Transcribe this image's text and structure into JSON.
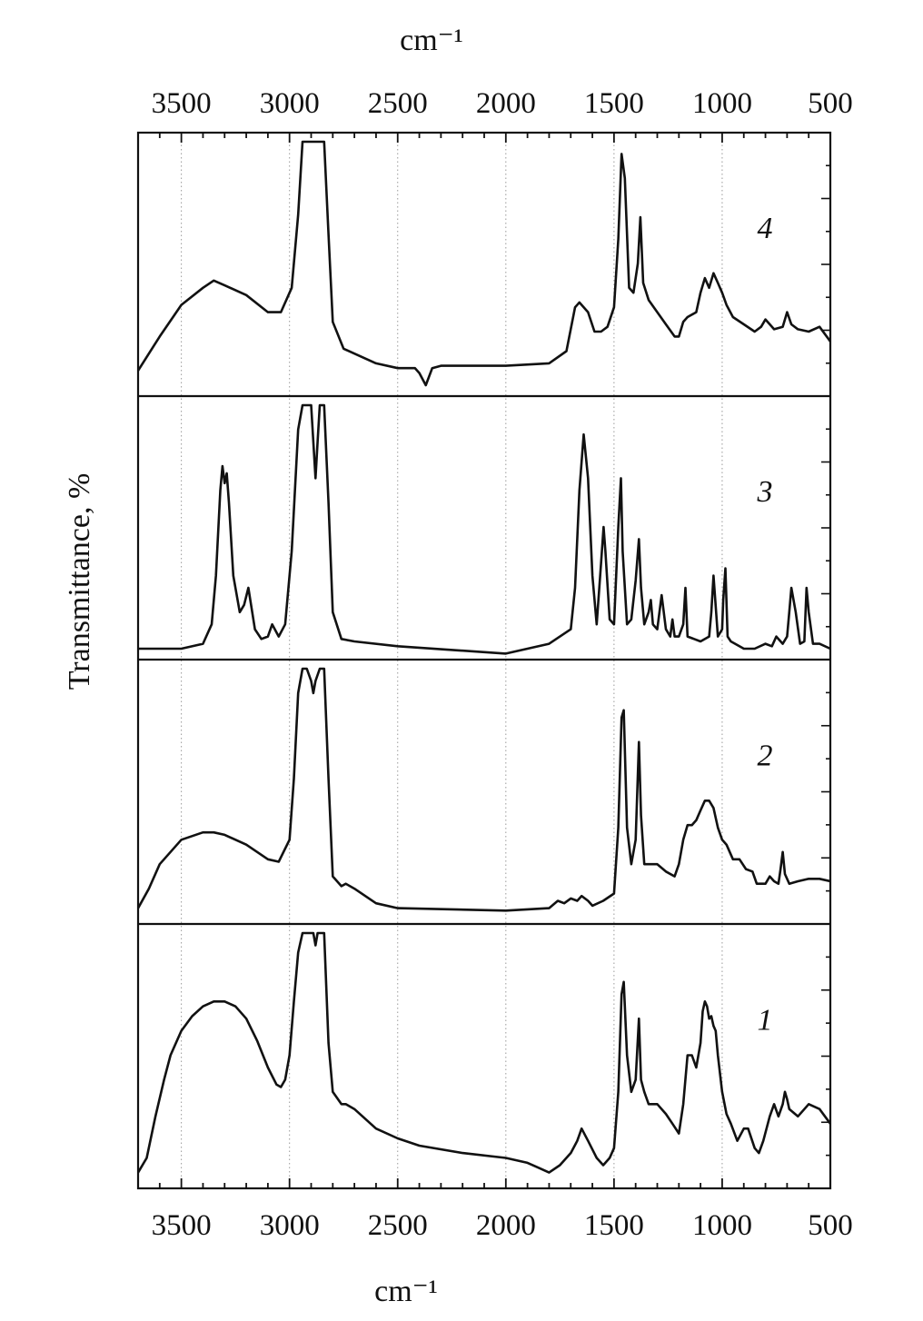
{
  "chart_data": {
    "type": "line",
    "title": "",
    "xlabel_top": "cm⁻¹",
    "xlabel_bottom": "cm⁻¹",
    "ylabel": "Transmittance, %",
    "xlim": [
      3700,
      500
    ],
    "x_reversed": true,
    "x_ticks": [
      3500,
      3000,
      2500,
      2000,
      1500,
      1000,
      500
    ],
    "x_tick_labels": [
      "3500",
      "3000",
      "2500",
      "2000",
      "1500",
      "1000",
      "500"
    ],
    "grid": "vertical dotted lines at major ticks",
    "line_color": "#111111",
    "panels": [
      {
        "name": "4",
        "ylim": [
          0,
          1
        ],
        "x": [
          3700,
          3600,
          3500,
          3400,
          3350,
          3300,
          3200,
          3100,
          3040,
          2990,
          2960,
          2940,
          2920,
          2860,
          2840,
          2820,
          2800,
          2750,
          2700,
          2600,
          2500,
          2420,
          2400,
          2370,
          2340,
          2300,
          2000,
          1800,
          1720,
          1680,
          1660,
          1620,
          1590,
          1560,
          1530,
          1500,
          1480,
          1465,
          1450,
          1430,
          1410,
          1390,
          1378,
          1365,
          1340,
          1300,
          1260,
          1220,
          1200,
          1180,
          1160,
          1120,
          1100,
          1080,
          1060,
          1040,
          1020,
          1000,
          980,
          950,
          900,
          850,
          820,
          800,
          760,
          720,
          700,
          680,
          650,
          600,
          550,
          500
        ],
        "y": [
          0.06,
          0.2,
          0.33,
          0.4,
          0.43,
          0.41,
          0.37,
          0.3,
          0.3,
          0.4,
          0.7,
          1.0,
          1.0,
          1.0,
          1.0,
          0.62,
          0.26,
          0.15,
          0.13,
          0.09,
          0.07,
          0.07,
          0.05,
          0.0,
          0.07,
          0.08,
          0.08,
          0.09,
          0.14,
          0.32,
          0.34,
          0.3,
          0.22,
          0.22,
          0.24,
          0.32,
          0.6,
          0.95,
          0.85,
          0.4,
          0.38,
          0.5,
          0.69,
          0.42,
          0.35,
          0.3,
          0.25,
          0.2,
          0.2,
          0.26,
          0.28,
          0.3,
          0.38,
          0.44,
          0.4,
          0.46,
          0.42,
          0.38,
          0.33,
          0.28,
          0.25,
          0.22,
          0.24,
          0.27,
          0.23,
          0.24,
          0.3,
          0.25,
          0.23,
          0.22,
          0.24,
          0.18
        ]
      },
      {
        "name": "3",
        "ylim": [
          0,
          1
        ],
        "x": [
          3700,
          3500,
          3400,
          3360,
          3340,
          3320,
          3310,
          3300,
          3290,
          3280,
          3260,
          3230,
          3210,
          3190,
          3160,
          3130,
          3100,
          3080,
          3050,
          3020,
          2990,
          2960,
          2940,
          2920,
          2900,
          2890,
          2880,
          2870,
          2860,
          2840,
          2820,
          2800,
          2760,
          2700,
          2500,
          2000,
          1800,
          1700,
          1680,
          1660,
          1640,
          1620,
          1600,
          1580,
          1560,
          1548,
          1540,
          1520,
          1500,
          1480,
          1468,
          1460,
          1440,
          1420,
          1400,
          1385,
          1375,
          1360,
          1340,
          1330,
          1320,
          1300,
          1290,
          1280,
          1260,
          1240,
          1230,
          1220,
          1200,
          1180,
          1170,
          1160,
          1130,
          1100,
          1060,
          1050,
          1040,
          1020,
          1000,
          995,
          985,
          975,
          960,
          940,
          900,
          850,
          800,
          770,
          750,
          720,
          700,
          690,
          680,
          660,
          640,
          620,
          610,
          600,
          580,
          550,
          500
        ],
        "y": [
          0.0,
          0.0,
          0.02,
          0.1,
          0.3,
          0.65,
          0.75,
          0.68,
          0.72,
          0.6,
          0.3,
          0.15,
          0.18,
          0.25,
          0.08,
          0.04,
          0.05,
          0.1,
          0.05,
          0.1,
          0.4,
          0.9,
          1.0,
          1.0,
          1.0,
          0.85,
          0.7,
          0.85,
          1.0,
          1.0,
          0.6,
          0.15,
          0.04,
          0.03,
          0.01,
          -0.02,
          0.02,
          0.08,
          0.25,
          0.65,
          0.88,
          0.7,
          0.3,
          0.1,
          0.35,
          0.5,
          0.4,
          0.12,
          0.1,
          0.5,
          0.7,
          0.4,
          0.1,
          0.12,
          0.28,
          0.45,
          0.25,
          0.1,
          0.15,
          0.2,
          0.1,
          0.08,
          0.15,
          0.22,
          0.08,
          0.05,
          0.12,
          0.05,
          0.05,
          0.1,
          0.25,
          0.05,
          0.04,
          0.03,
          0.05,
          0.15,
          0.3,
          0.05,
          0.08,
          0.2,
          0.33,
          0.05,
          0.03,
          0.02,
          0.0,
          0.0,
          0.02,
          0.01,
          0.05,
          0.02,
          0.05,
          0.15,
          0.25,
          0.15,
          0.02,
          0.03,
          0.25,
          0.15,
          0.02,
          0.02,
          0.0
        ]
      },
      {
        "name": "2",
        "ylim": [
          0,
          1
        ],
        "x": [
          3700,
          3650,
          3600,
          3500,
          3400,
          3350,
          3300,
          3200,
          3100,
          3050,
          3000,
          2980,
          2960,
          2940,
          2920,
          2900,
          2890,
          2880,
          2860,
          2840,
          2820,
          2800,
          2760,
          2740,
          2700,
          2600,
          2500,
          2000,
          1800,
          1760,
          1730,
          1700,
          1670,
          1650,
          1620,
          1600,
          1550,
          1500,
          1480,
          1465,
          1455,
          1440,
          1420,
          1400,
          1385,
          1375,
          1360,
          1340,
          1300,
          1260,
          1220,
          1200,
          1180,
          1160,
          1140,
          1120,
          1100,
          1080,
          1060,
          1040,
          1020,
          1000,
          980,
          950,
          920,
          890,
          860,
          840,
          800,
          780,
          760,
          740,
          730,
          720,
          710,
          690,
          650,
          600,
          550,
          500
        ],
        "y": [
          0.02,
          0.1,
          0.2,
          0.3,
          0.33,
          0.33,
          0.32,
          0.28,
          0.22,
          0.21,
          0.3,
          0.55,
          0.9,
          1.0,
          1.0,
          0.95,
          0.9,
          0.95,
          1.0,
          1.0,
          0.55,
          0.15,
          0.11,
          0.12,
          0.1,
          0.04,
          0.02,
          0.01,
          0.02,
          0.05,
          0.04,
          0.06,
          0.05,
          0.07,
          0.05,
          0.03,
          0.05,
          0.08,
          0.35,
          0.8,
          0.83,
          0.35,
          0.2,
          0.3,
          0.7,
          0.4,
          0.2,
          0.2,
          0.2,
          0.17,
          0.15,
          0.2,
          0.3,
          0.36,
          0.36,
          0.38,
          0.42,
          0.46,
          0.46,
          0.43,
          0.35,
          0.3,
          0.28,
          0.22,
          0.22,
          0.18,
          0.17,
          0.12,
          0.12,
          0.15,
          0.13,
          0.12,
          0.18,
          0.25,
          0.16,
          0.12,
          0.13,
          0.14,
          0.14,
          0.13
        ]
      },
      {
        "name": "1",
        "ylim": [
          0,
          1
        ],
        "x": [
          3700,
          3660,
          3620,
          3580,
          3550,
          3500,
          3450,
          3400,
          3350,
          3300,
          3250,
          3200,
          3150,
          3100,
          3060,
          3040,
          3020,
          3000,
          2980,
          2960,
          2940,
          2920,
          2900,
          2890,
          2880,
          2870,
          2860,
          2840,
          2820,
          2800,
          2760,
          2740,
          2700,
          2600,
          2500,
          2400,
          2200,
          2000,
          1900,
          1850,
          1800,
          1750,
          1700,
          1670,
          1650,
          1620,
          1580,
          1550,
          1520,
          1500,
          1480,
          1465,
          1455,
          1440,
          1420,
          1400,
          1385,
          1375,
          1360,
          1340,
          1300,
          1260,
          1230,
          1200,
          1180,
          1160,
          1140,
          1120,
          1100,
          1090,
          1080,
          1070,
          1060,
          1050,
          1040,
          1030,
          1020,
          1000,
          980,
          960,
          930,
          900,
          880,
          850,
          830,
          810,
          780,
          760,
          740,
          720,
          710,
          700,
          690,
          650,
          600,
          550,
          500
        ],
        "y": [
          0.02,
          0.08,
          0.25,
          0.4,
          0.5,
          0.6,
          0.66,
          0.7,
          0.72,
          0.72,
          0.7,
          0.65,
          0.56,
          0.45,
          0.38,
          0.37,
          0.4,
          0.5,
          0.72,
          0.92,
          1.0,
          1.0,
          1.0,
          1.0,
          0.95,
          1.0,
          1.0,
          1.0,
          0.55,
          0.35,
          0.3,
          0.3,
          0.28,
          0.2,
          0.16,
          0.13,
          0.1,
          0.08,
          0.06,
          0.04,
          0.02,
          0.05,
          0.1,
          0.15,
          0.2,
          0.15,
          0.08,
          0.05,
          0.08,
          0.12,
          0.35,
          0.75,
          0.8,
          0.5,
          0.35,
          0.4,
          0.65,
          0.4,
          0.35,
          0.3,
          0.3,
          0.26,
          0.22,
          0.18,
          0.3,
          0.5,
          0.5,
          0.45,
          0.55,
          0.68,
          0.72,
          0.7,
          0.65,
          0.66,
          0.62,
          0.6,
          0.5,
          0.35,
          0.26,
          0.22,
          0.15,
          0.2,
          0.2,
          0.12,
          0.1,
          0.15,
          0.25,
          0.3,
          0.25,
          0.3,
          0.35,
          0.32,
          0.28,
          0.25,
          0.3,
          0.28,
          0.22
        ]
      }
    ]
  }
}
